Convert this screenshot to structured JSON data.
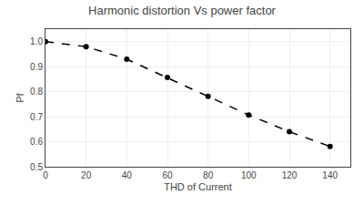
{
  "chart_data": {
    "type": "line",
    "title": "Harmonic distortion Vs power factor",
    "x_label": "THD of Current",
    "y_label": "Pf",
    "x": [
      0,
      20,
      40,
      60,
      80,
      100,
      120,
      140
    ],
    "values": [
      1.0,
      0.98,
      0.93,
      0.857,
      0.781,
      0.707,
      0.64,
      0.581
    ],
    "color": "black",
    "marker": "circle",
    "line_style": "dashed",
    "xlim": [
      0,
      150
    ],
    "ylim": [
      0.5,
      1.05
    ],
    "xticks": [
      0,
      20,
      40,
      60,
      80,
      100,
      120,
      140
    ],
    "yticks": [
      0.5,
      0.6,
      0.7,
      0.8,
      0.9,
      {
        "value": 1.0,
        "label": "1.0"
      }
    ],
    "grid": true
  }
}
